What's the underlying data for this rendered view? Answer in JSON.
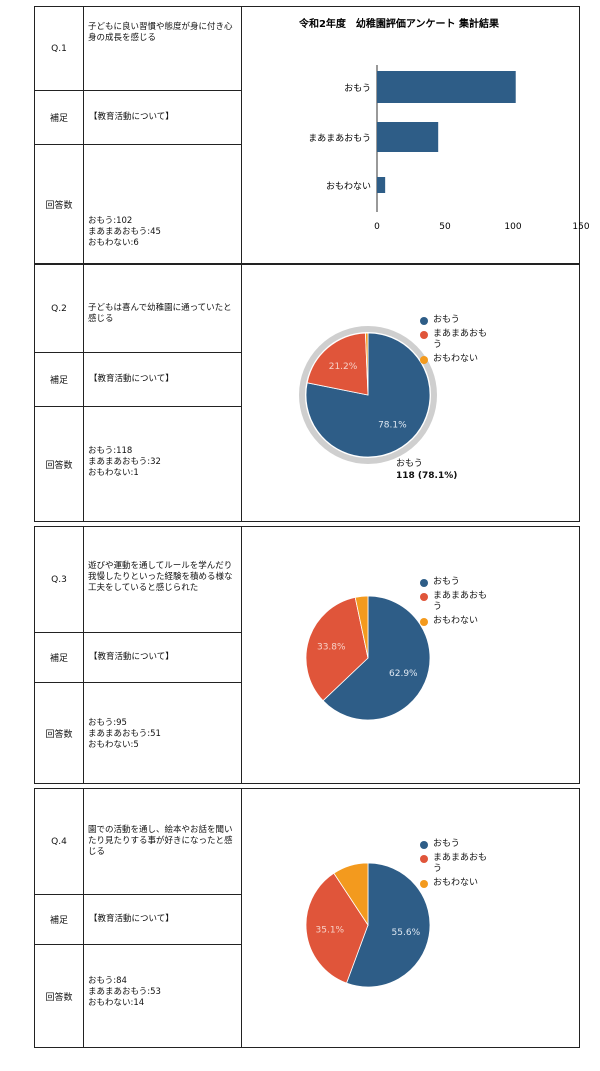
{
  "colors": {
    "omou": "#2e5d87",
    "maamaa": "#e0553a",
    "omowanai": "#f39a1e"
  },
  "labels": {
    "supplement": "補足",
    "answers": "回答数"
  },
  "questions": [
    {
      "no": "Q.1",
      "text": "子どもに良い習慣や態度が身に付き心身の成長を感じる",
      "supplement": "【教育活動について】",
      "answers": [
        "おもう:102",
        "まあまあおもう:45",
        "おもわない:6"
      ]
    },
    {
      "no": "Q.2",
      "text": "子どもは喜んで幼稚園に通っていたと感じる",
      "supplement": "【教育活動について】",
      "answers": [
        "おもう:118",
        "まあまあおもう:32",
        "おもわない:1"
      ]
    },
    {
      "no": "Q.3",
      "text": "遊びや運動を通してルールを学んだり我慢したりといった経験を積める様な工夫をしていると感じられた",
      "supplement": "【教育活動について】",
      "answers": [
        "おもう:95",
        "まあまあおもう:51",
        "おもわない:5"
      ]
    },
    {
      "no": "Q.4",
      "text": "園での活動を通し、絵本やお話を聞いたり見たりする事が好きになったと感じる",
      "supplement": "【教育活動について】",
      "answers": [
        "おもう:84",
        "まあまあおもう:53",
        "おもわない:14"
      ]
    }
  ],
  "legend": [
    "おもう",
    "まあまあおもう",
    "おもわない"
  ],
  "chart_data": [
    {
      "type": "bar",
      "orientation": "horizontal",
      "title": "令和2年度　幼稚園評価アンケート 集計結果",
      "categories": [
        "おもう",
        "まあまあおもう",
        "おもわない"
      ],
      "values": [
        102,
        45,
        6
      ],
      "xlim": [
        0,
        150
      ],
      "xticks": [
        "0",
        "50",
        "100",
        "150"
      ],
      "grid": false
    },
    {
      "type": "pie",
      "categories": [
        "おもう",
        "まあまあおもう",
        "おもわない"
      ],
      "values": [
        118,
        32,
        1
      ],
      "slice_labels": [
        "78.1%",
        "21.2%",
        ""
      ],
      "tooltip": {
        "label": "おもう",
        "value": "118 (78.1%)"
      },
      "legend": "right"
    },
    {
      "type": "pie",
      "categories": [
        "おもう",
        "まあまあおもう",
        "おもわない"
      ],
      "values": [
        95,
        51,
        5
      ],
      "slice_labels": [
        "62.9%",
        "33.8%",
        ""
      ],
      "legend": "right"
    },
    {
      "type": "pie",
      "categories": [
        "おもう",
        "まあまあおもう",
        "おもわない"
      ],
      "values": [
        84,
        53,
        14
      ],
      "slice_labels": [
        "55.6%",
        "35.1%",
        ""
      ],
      "legend": "right"
    }
  ]
}
